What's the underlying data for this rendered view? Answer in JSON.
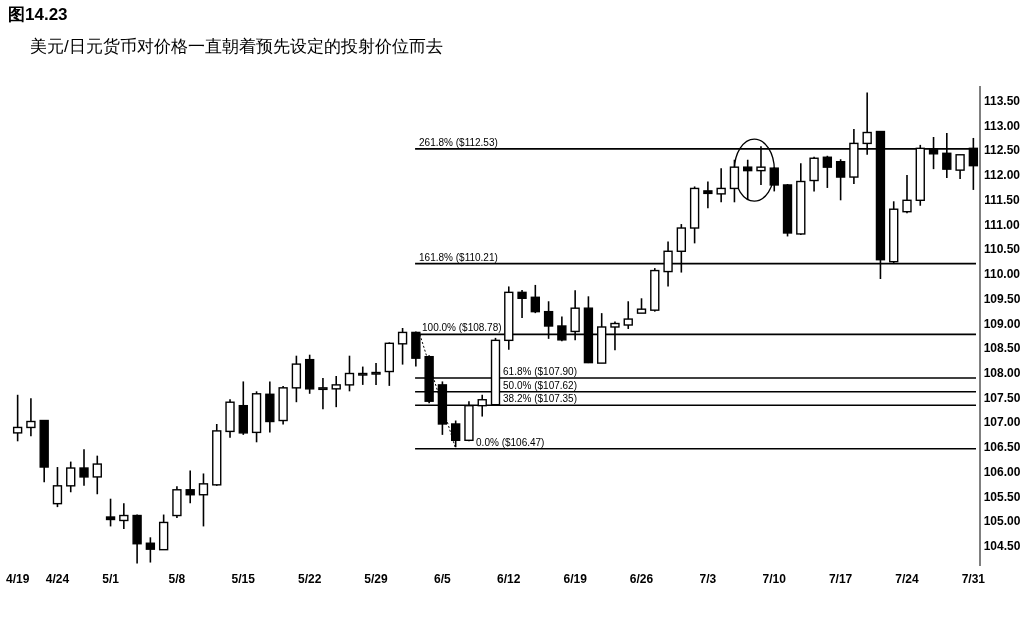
{
  "chart_data": {
    "type": "candlestick",
    "title": "图14.23",
    "subtitle": "美元/日元货币对价格一直朝着预先设定的投射价位而去",
    "color": "#000000",
    "categories": [
      "4/19",
      null,
      null,
      "4/24",
      null,
      null,
      null,
      "5/1",
      null,
      null,
      null,
      null,
      "5/8",
      null,
      null,
      null,
      null,
      "5/15",
      null,
      null,
      null,
      null,
      "5/22",
      null,
      null,
      null,
      null,
      "5/29",
      null,
      null,
      null,
      null,
      "6/5",
      null,
      null,
      null,
      null,
      "6/12",
      null,
      null,
      null,
      null,
      "6/19",
      null,
      null,
      null,
      null,
      "6/26",
      null,
      null,
      null,
      null,
      "7/3",
      null,
      null,
      null,
      null,
      "7/10",
      null,
      null,
      null,
      null,
      "7/17",
      null,
      null,
      null,
      null,
      "7/24",
      null,
      null,
      null,
      null,
      "7/31"
    ],
    "ohlc": [
      [
        106.79,
        107.56,
        106.62,
        106.9
      ],
      [
        106.9,
        107.49,
        106.72,
        107.02
      ],
      [
        107.04,
        107.05,
        105.79,
        106.1
      ],
      [
        105.36,
        106.1,
        105.29,
        105.72
      ],
      [
        105.72,
        106.21,
        105.59,
        106.08
      ],
      [
        106.08,
        106.46,
        105.72,
        105.9
      ],
      [
        105.9,
        106.33,
        105.55,
        106.16
      ],
      [
        105.09,
        105.46,
        104.9,
        105.04
      ],
      [
        105.02,
        105.37,
        104.85,
        105.12
      ],
      [
        105.12,
        105.14,
        104.15,
        104.55
      ],
      [
        104.56,
        104.68,
        104.17,
        104.44
      ],
      [
        104.43,
        105.14,
        104.43,
        104.98
      ],
      [
        105.12,
        105.71,
        105.07,
        105.64
      ],
      [
        105.64,
        106.03,
        105.37,
        105.54
      ],
      [
        105.54,
        105.97,
        104.9,
        105.76
      ],
      [
        105.74,
        106.97,
        105.72,
        106.83
      ],
      [
        106.82,
        107.47,
        106.69,
        107.41
      ],
      [
        107.34,
        107.83,
        106.75,
        106.79
      ],
      [
        106.8,
        107.63,
        106.6,
        107.58
      ],
      [
        107.57,
        107.83,
        106.8,
        107.02
      ],
      [
        107.04,
        107.74,
        106.96,
        107.7
      ],
      [
        107.7,
        108.35,
        107.41,
        108.18
      ],
      [
        108.27,
        108.37,
        107.58,
        107.68
      ],
      [
        107.7,
        107.9,
        107.27,
        107.7
      ],
      [
        107.68,
        107.94,
        107.31,
        107.76
      ],
      [
        107.76,
        108.35,
        107.63,
        107.99
      ],
      [
        107.99,
        108.13,
        107.76,
        107.99
      ],
      [
        107.99,
        108.2,
        107.76,
        108.01
      ],
      [
        108.03,
        108.62,
        107.74,
        108.6
      ],
      [
        108.59,
        108.91,
        108.17,
        108.82
      ],
      [
        108.82,
        108.84,
        108.13,
        108.3
      ],
      [
        108.33,
        108.36,
        107.39,
        107.43
      ],
      [
        107.76,
        107.83,
        106.75,
        106.97
      ],
      [
        106.97,
        107.04,
        106.5,
        106.64
      ],
      [
        106.64,
        107.43,
        106.62,
        107.34
      ],
      [
        107.34,
        107.56,
        107.12,
        107.46
      ],
      [
        107.36,
        108.71,
        107.36,
        108.66
      ],
      [
        108.66,
        109.75,
        108.47,
        109.63
      ],
      [
        109.63,
        109.68,
        109.11,
        109.51
      ],
      [
        109.53,
        109.78,
        109.21,
        109.24
      ],
      [
        109.24,
        109.45,
        108.69,
        108.95
      ],
      [
        108.95,
        109.14,
        108.64,
        108.67
      ],
      [
        108.84,
        109.67,
        108.66,
        109.31
      ],
      [
        109.31,
        109.55,
        108.2,
        108.21
      ],
      [
        108.2,
        109.21,
        108.2,
        108.93
      ],
      [
        108.93,
        109.04,
        108.46,
        109.0
      ],
      [
        108.97,
        109.45,
        108.89,
        109.09
      ],
      [
        109.21,
        109.51,
        109.21,
        109.29
      ],
      [
        109.27,
        110.12,
        109.24,
        110.07
      ],
      [
        110.05,
        110.66,
        109.75,
        110.46
      ],
      [
        110.46,
        111.01,
        110.03,
        110.93
      ],
      [
        110.93,
        111.77,
        110.62,
        111.73
      ],
      [
        111.68,
        111.87,
        111.33,
        111.63
      ],
      [
        111.62,
        112.14,
        111.45,
        111.73
      ],
      [
        111.73,
        112.31,
        111.45,
        112.16
      ],
      [
        112.16,
        112.31,
        111.5,
        112.09
      ],
      [
        112.09,
        112.58,
        111.8,
        112.16
      ],
      [
        112.14,
        112.16,
        111.67,
        111.8
      ],
      [
        111.8,
        111.82,
        110.76,
        110.83
      ],
      [
        110.81,
        112.24,
        110.79,
        111.87
      ],
      [
        111.89,
        112.37,
        111.67,
        112.34
      ],
      [
        112.36,
        112.39,
        111.74,
        112.16
      ],
      [
        112.27,
        112.32,
        111.49,
        111.96
      ],
      [
        111.96,
        112.93,
        111.82,
        112.64
      ],
      [
        112.64,
        113.67,
        112.41,
        112.86
      ],
      [
        112.88,
        112.88,
        109.9,
        110.29
      ],
      [
        110.25,
        111.47,
        110.22,
        111.31
      ],
      [
        111.26,
        112.0,
        111.23,
        111.49
      ],
      [
        111.49,
        112.61,
        111.38,
        112.54
      ],
      [
        112.51,
        112.77,
        112.12,
        112.43
      ],
      [
        112.44,
        112.85,
        111.94,
        112.12
      ],
      [
        112.1,
        112.41,
        111.92,
        112.41
      ],
      [
        112.54,
        112.75,
        111.7,
        112.19
      ]
    ],
    "ylim": [
      104.1,
      113.8
    ],
    "yticks": [
      {
        "value": 104.5,
        "label": "104.50"
      },
      {
        "value": 105,
        "label": "105.00"
      },
      {
        "value": 105.5,
        "label": "105.50"
      },
      {
        "value": 106,
        "label": "106.00"
      },
      {
        "value": 106.5,
        "label": "106.50"
      },
      {
        "value": 107,
        "label": "107.00"
      },
      {
        "value": 107.5,
        "label": "107.50"
      },
      {
        "value": 108,
        "label": "108.00"
      },
      {
        "value": 108.5,
        "label": "108.50"
      },
      {
        "value": 109,
        "label": "109.00"
      },
      {
        "value": 109.5,
        "label": "109.50"
      },
      {
        "value": 110,
        "label": "110.00"
      },
      {
        "value": 110.5,
        "label": "110.50"
      },
      {
        "value": 111,
        "label": "111.00"
      },
      {
        "value": 111.5,
        "label": "111.50"
      },
      {
        "value": 112,
        "label": "112.00"
      },
      {
        "value": 112.5,
        "label": "112.50"
      },
      {
        "value": 113,
        "label": "113.00"
      },
      {
        "value": 113.5,
        "label": "113.50"
      }
    ],
    "ref_lines": [
      {
        "axis": "y",
        "value": 112.53,
        "label": "261.8% ($112.53)"
      },
      {
        "axis": "y",
        "value": 110.21,
        "label": "161.8% ($110.21)"
      },
      {
        "axis": "y",
        "value": 108.78,
        "label": "100.0% ($108.78)"
      },
      {
        "axis": "y",
        "value": 107.9,
        "label": "61.8% ($107.90)"
      },
      {
        "axis": "y",
        "value": 107.62,
        "label": "50.0% ($107.62)"
      },
      {
        "axis": "y",
        "value": 107.35,
        "label": "38.2% ($107.35)"
      },
      {
        "axis": "y",
        "value": 106.47,
        "label": "0.0% ($106.47)"
      }
    ]
  }
}
